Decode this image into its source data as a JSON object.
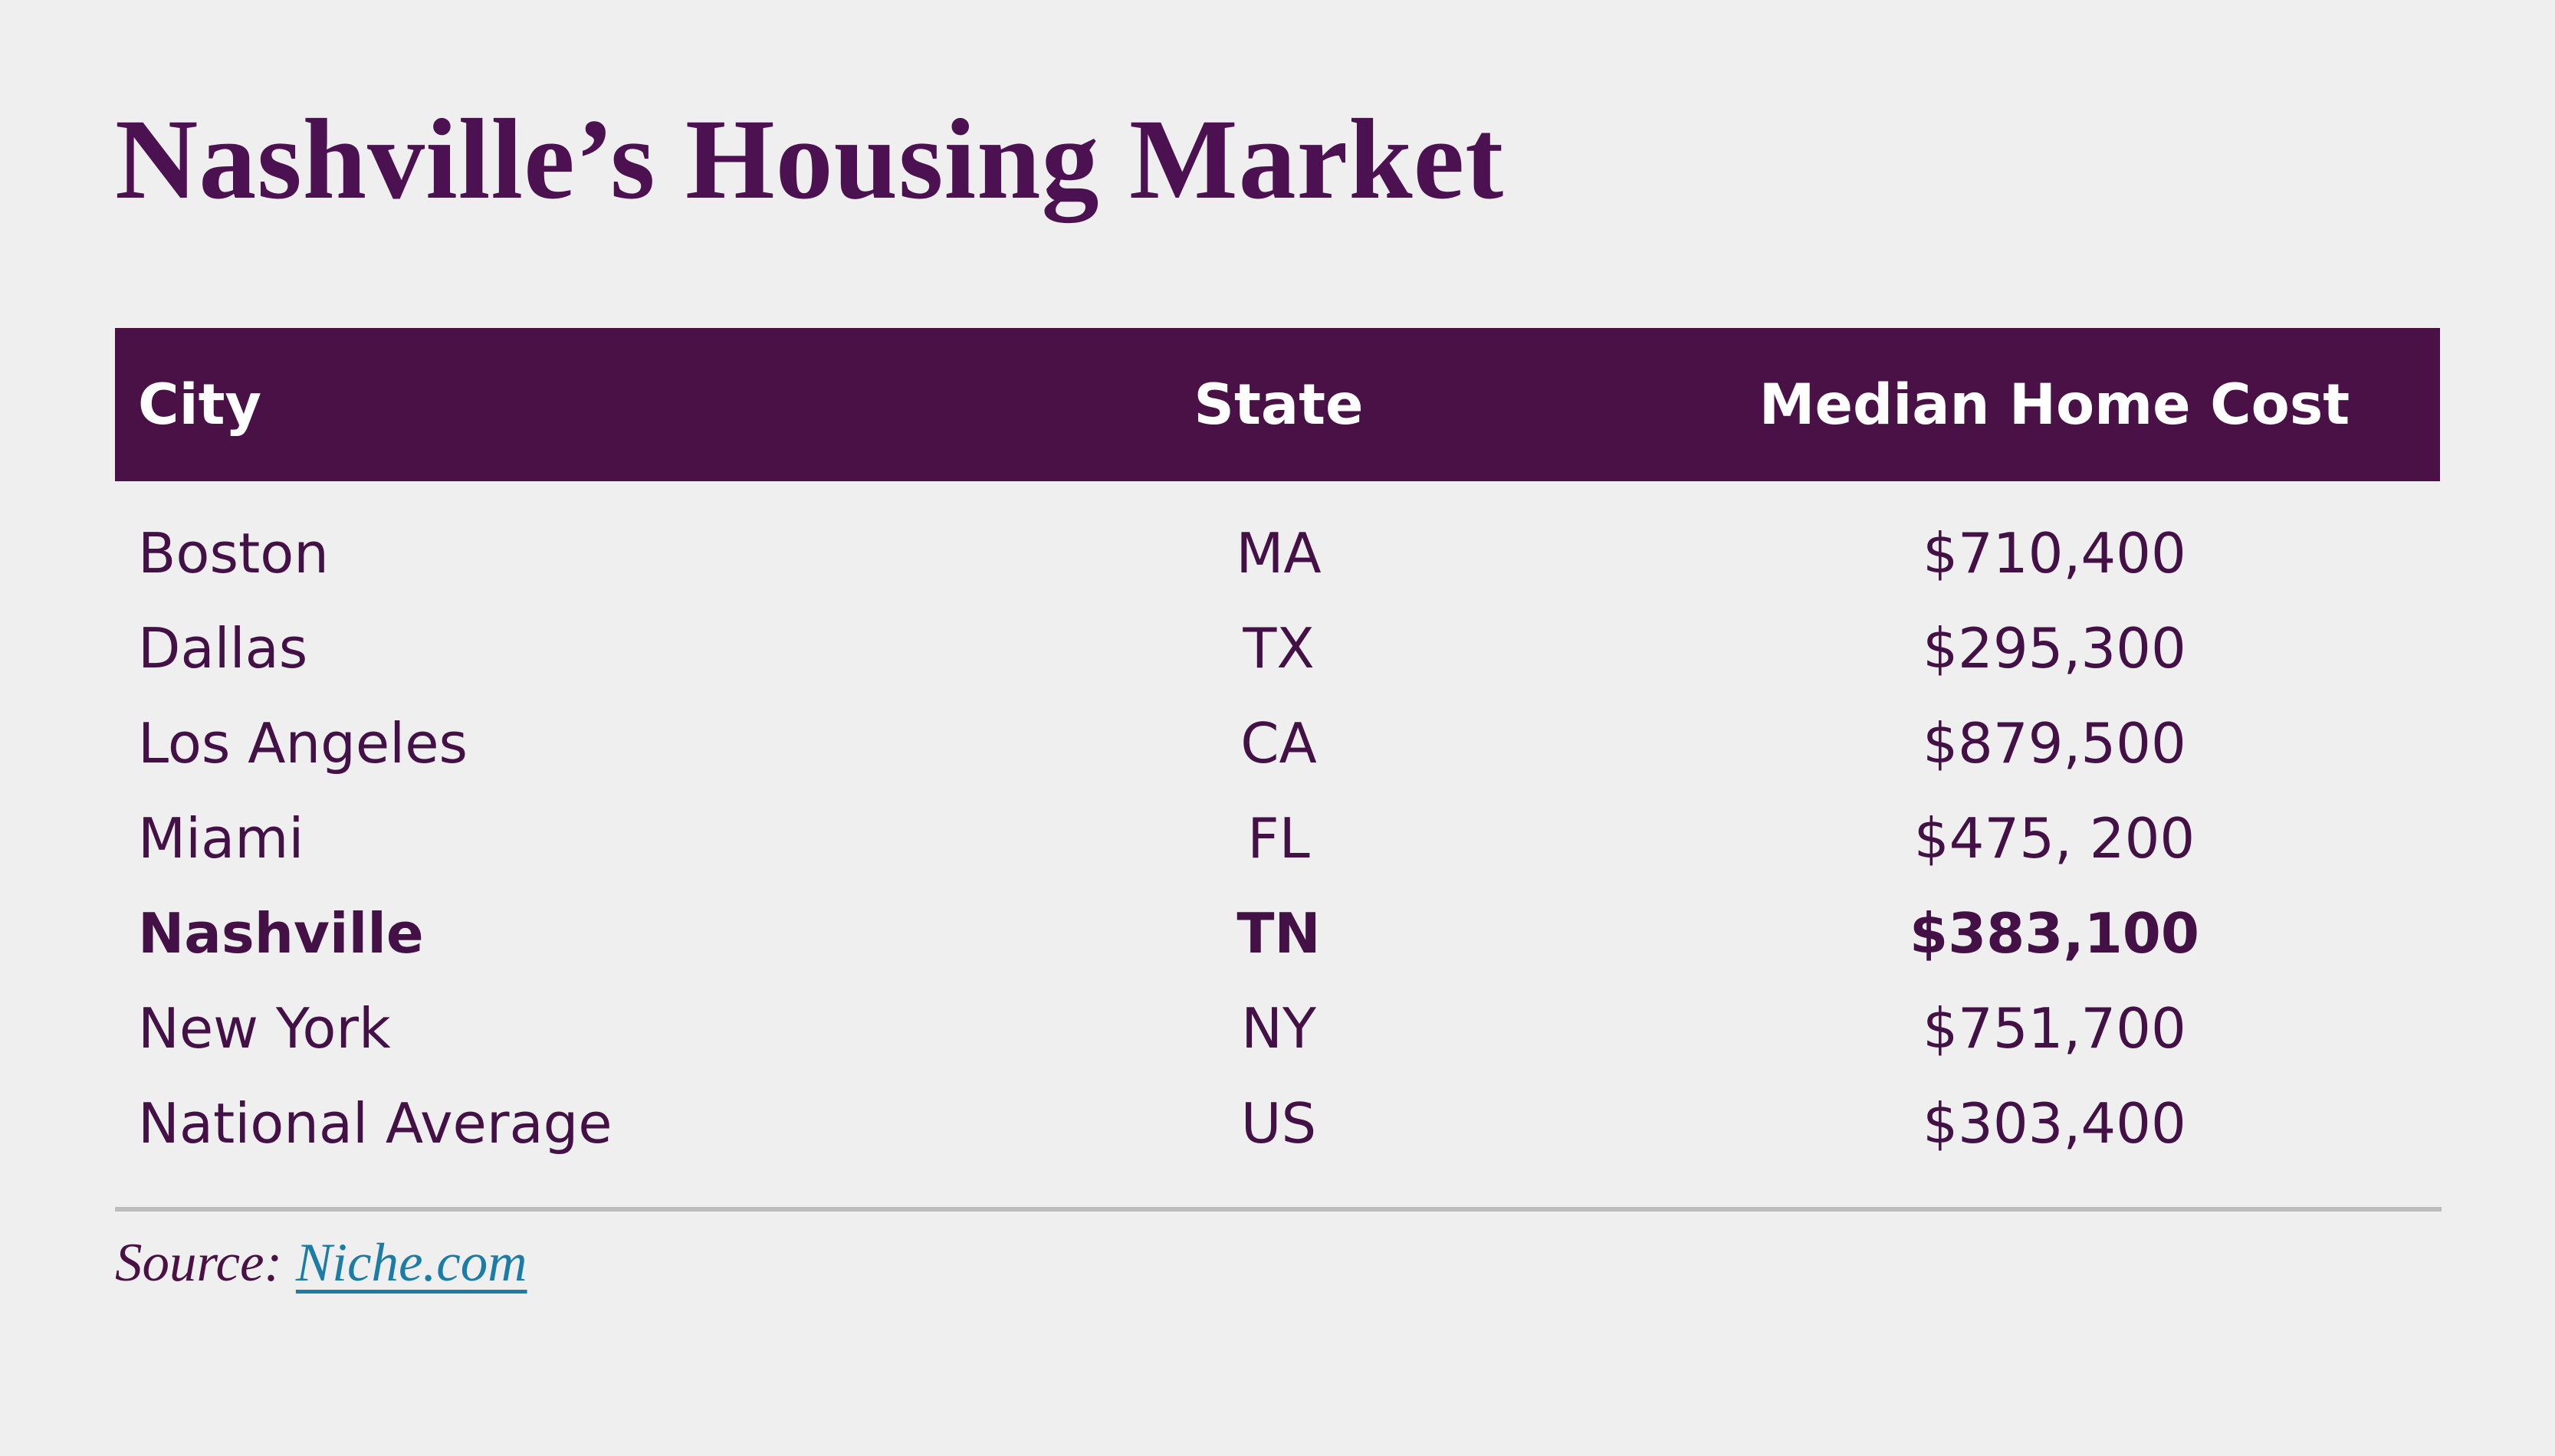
{
  "title": "Nashville’s Housing Market",
  "table": {
    "columns": [
      {
        "label": "City"
      },
      {
        "label": "State"
      },
      {
        "label": "Median Home Cost"
      }
    ],
    "rows": [
      {
        "city": "Boston",
        "state": "MA",
        "cost": "$710,400",
        "highlight": false
      },
      {
        "city": "Dallas",
        "state": "TX",
        "cost": "$295,300",
        "highlight": false
      },
      {
        "city": "Los Angeles",
        "state": "CA",
        "cost": "$879,500",
        "highlight": false
      },
      {
        "city": "Miami",
        "state": "FL",
        "cost": "$475, 200",
        "highlight": false
      },
      {
        "city": "Nashville",
        "state": "TN",
        "cost": "$383,100",
        "highlight": true
      },
      {
        "city": "New York",
        "state": "NY",
        "cost": "$751,700",
        "highlight": false
      },
      {
        "city": "National Average",
        "state": "US",
        "cost": "$303,400",
        "highlight": false
      }
    ]
  },
  "source": {
    "label": "Source:",
    "link_text": "Niche.com"
  },
  "colors": {
    "background": "#f0eff0",
    "header_background": "#4a1147",
    "header_text": "#ffffff",
    "body_text": "#431146",
    "title_text": "#4c1150",
    "divider": "#bcbcbc",
    "source_text": "#4a1144",
    "link": "#1b7ca6"
  },
  "chart_data": {
    "type": "table",
    "title": "Nashville’s Housing Market",
    "columns": [
      "City",
      "State",
      "Median Home Cost"
    ],
    "rows": [
      [
        "Boston",
        "MA",
        "$710,400"
      ],
      [
        "Dallas",
        "TX",
        "$295,300"
      ],
      [
        "Los Angeles",
        "CA",
        "$879,500"
      ],
      [
        "Miami",
        "FL",
        "$475, 200"
      ],
      [
        "Nashville",
        "TN",
        "$383,100"
      ],
      [
        "New York",
        "NY",
        "$751,700"
      ],
      [
        "National Average",
        "US",
        "$303,400"
      ]
    ],
    "values_numeric": [
      710400,
      295300,
      879500,
      475200,
      383100,
      751700,
      303400
    ],
    "highlighted_row": "Nashville",
    "source": "Niche.com"
  }
}
